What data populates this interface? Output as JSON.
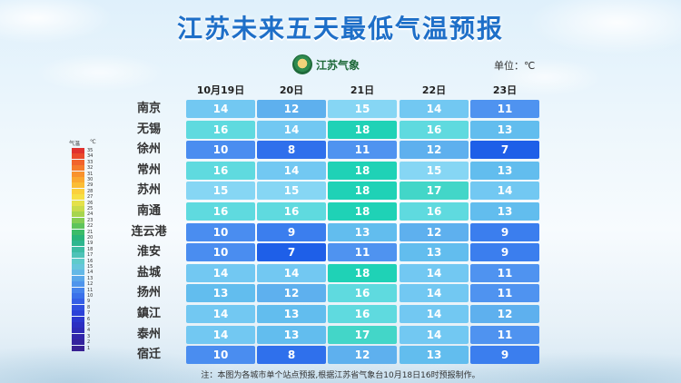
{
  "title": "江苏未来五天最低气温预报",
  "logo_text": "江苏气象",
  "unit_label": "单位：℃",
  "note": "注：本图为各城市单个站点预报,根据江苏省气象台10月18日16时预报制作。",
  "legend": {
    "title": "气温",
    "unit": "℃",
    "levels": [
      35,
      34,
      33,
      32,
      31,
      30,
      29,
      28,
      27,
      26,
      25,
      24,
      23,
      22,
      21,
      20,
      19,
      18,
      17,
      16,
      15,
      14,
      13,
      12,
      11,
      10,
      9,
      8,
      7,
      6,
      5,
      4,
      3,
      2,
      1
    ],
    "colors": [
      "#e0312e",
      "#ea4a2c",
      "#f1642c",
      "#f57c2c",
      "#f8922d",
      "#faa830",
      "#fbbd35",
      "#fbd03c",
      "#f6e045",
      "#e4e14a",
      "#c8dc4c",
      "#a7d54e",
      "#84cd54",
      "#5ec45c",
      "#3cbc68",
      "#2ab57a",
      "#2eb68f",
      "#3cbca4",
      "#4ec3b8",
      "#5fcbcb",
      "#66c6dc",
      "#64b8e6",
      "#5aa7ea",
      "#4f95ec",
      "#4583ec",
      "#3b71ea",
      "#345fe6",
      "#2f4fe0",
      "#2c42d8",
      "#2b37ce",
      "#2c2fc2",
      "#2e2ab6",
      "#3126aa",
      "#34239e",
      "#372092"
    ]
  },
  "chart_data": {
    "type": "heatmap",
    "title": "江苏未来五天最低气温预报",
    "unit": "℃",
    "x": [
      "10月19日",
      "20日",
      "21日",
      "22日",
      "23日"
    ],
    "y": [
      "南京",
      "无锡",
      "徐州",
      "常州",
      "苏州",
      "南通",
      "连云港",
      "淮安",
      "盐城",
      "扬州",
      "鎮江",
      "泰州",
      "宿迁"
    ],
    "values": [
      [
        14,
        12,
        15,
        14,
        11
      ],
      [
        16,
        14,
        18,
        16,
        13
      ],
      [
        10,
        8,
        11,
        12,
        7
      ],
      [
        16,
        14,
        18,
        15,
        13
      ],
      [
        15,
        15,
        18,
        17,
        14
      ],
      [
        16,
        16,
        18,
        16,
        13
      ],
      [
        10,
        9,
        13,
        12,
        9
      ],
      [
        10,
        7,
        11,
        13,
        9
      ],
      [
        14,
        14,
        18,
        14,
        11
      ],
      [
        13,
        12,
        16,
        14,
        11
      ],
      [
        14,
        13,
        16,
        14,
        12
      ],
      [
        14,
        13,
        17,
        14,
        11
      ],
      [
        10,
        8,
        12,
        13,
        9
      ]
    ]
  }
}
